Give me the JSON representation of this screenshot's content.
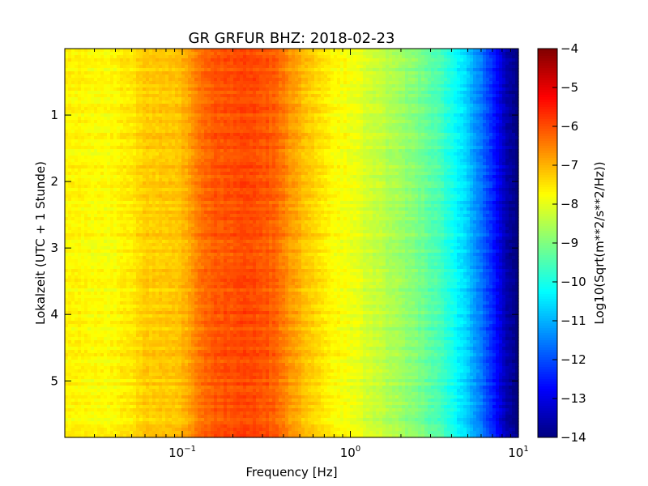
{
  "chart_data": {
    "type": "heatmap",
    "title": "GR GRFUR BHZ: 2018-02-23",
    "xlabel": "Frequency [Hz]",
    "ylabel": "Lokalzeit (UTC + 1 Stunde)",
    "x_scale": "log",
    "xlim": [
      0.02,
      10
    ],
    "ylim": [
      5.85,
      0
    ],
    "x_ticks": [
      {
        "value": 0.1,
        "base": "10",
        "exp": "−1"
      },
      {
        "value": 1,
        "base": "10",
        "exp": "0"
      },
      {
        "value": 10,
        "base": "10",
        "exp": "1"
      }
    ],
    "y_ticks": [
      "1",
      "2",
      "3",
      "4",
      "5"
    ],
    "colorbar": {
      "label": "Log10(Sqrt(m**2/s**2/Hz))",
      "range": [
        -14,
        -4
      ],
      "ticks": [
        "−4",
        "−5",
        "−6",
        "−7",
        "−8",
        "−9",
        "−10",
        "−11",
        "−12",
        "−13",
        "−14"
      ],
      "colormap": "jet"
    },
    "spectrum_profile": [
      {
        "freq": 0.02,
        "value": -7.7
      },
      {
        "freq": 0.04,
        "value": -7.75
      },
      {
        "freq": 0.06,
        "value": -7.3
      },
      {
        "freq": 0.1,
        "value": -7.1
      },
      {
        "freq": 0.12,
        "value": -6.55
      },
      {
        "freq": 0.15,
        "value": -6.1
      },
      {
        "freq": 0.25,
        "value": -5.95
      },
      {
        "freq": 0.35,
        "value": -6.2
      },
      {
        "freq": 0.5,
        "value": -7.0
      },
      {
        "freq": 0.7,
        "value": -7.6
      },
      {
        "freq": 1.0,
        "value": -7.9
      },
      {
        "freq": 1.5,
        "value": -8.35
      },
      {
        "freq": 2.0,
        "value": -8.7
      },
      {
        "freq": 3.0,
        "value": -9.3
      },
      {
        "freq": 4.0,
        "value": -10.0
      },
      {
        "freq": 5.0,
        "value": -10.8
      },
      {
        "freq": 6.0,
        "value": -11.6
      },
      {
        "freq": 7.0,
        "value": -12.4
      },
      {
        "freq": 8.0,
        "value": -13.2
      },
      {
        "freq": 9.0,
        "value": -13.8
      },
      {
        "freq": 10.0,
        "value": -14.0
      }
    ],
    "time_rows": 120,
    "grid": false,
    "legend": "colorbar-right"
  }
}
